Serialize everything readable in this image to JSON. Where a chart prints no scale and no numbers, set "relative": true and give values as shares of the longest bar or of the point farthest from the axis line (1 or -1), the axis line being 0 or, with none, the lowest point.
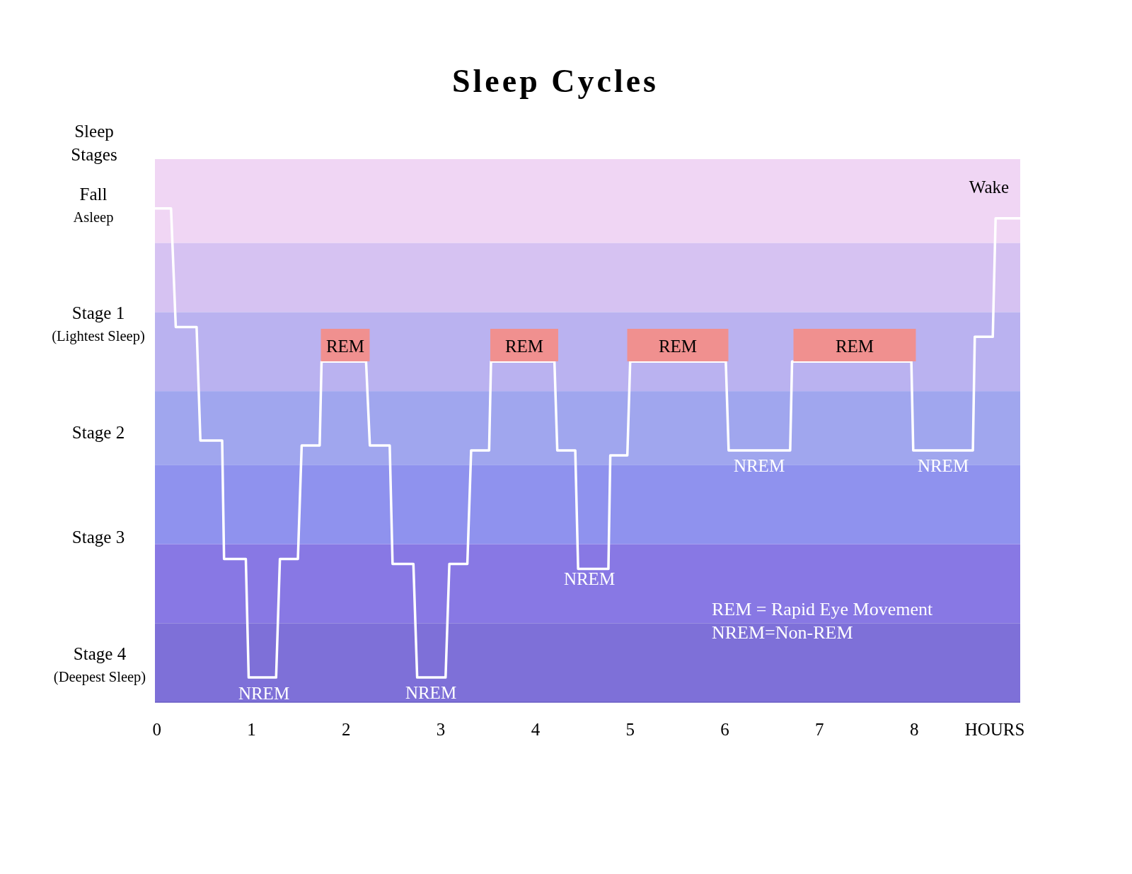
{
  "chart_data": {
    "type": "line",
    "title": "Sleep Cycles",
    "xlabel": "HOURS",
    "ylabel": "Sleep\nStages",
    "xlim": [
      -0.02,
      9.12
    ],
    "xticks": [
      0,
      1,
      2,
      3,
      4,
      5,
      6,
      7,
      8
    ],
    "relative": true,
    "marker": "none",
    "line_style": "solid",
    "bands": [
      {
        "axis": "y",
        "from": 0.93,
        "to": 1.1,
        "color": "#f0d6f4"
      },
      {
        "axis": "y",
        "from": 0.79,
        "to": 0.93,
        "color": "#d6c2f2"
      },
      {
        "axis": "y",
        "from": 0.63,
        "to": 0.79,
        "color": "#bab2f0"
      },
      {
        "axis": "y",
        "from": 0.48,
        "to": 0.63,
        "color": "#a0a6ee"
      },
      {
        "axis": "y",
        "from": 0.32,
        "to": 0.48,
        "color": "#8f92ee"
      },
      {
        "axis": "y",
        "from": 0.16,
        "to": 0.32,
        "color": "#8878e4"
      },
      {
        "axis": "y",
        "from": 0,
        "to": 0.16,
        "color": "#7e70d8"
      }
    ],
    "series": [
      {
        "color": "#ffffff",
        "x": [
          -0.02,
          0.15,
          0.2,
          0.42,
          0.46,
          0.69,
          0.71,
          0.94,
          0.97,
          1.26,
          1.3,
          1.49,
          1.53,
          1.72,
          1.74,
          2.21,
          2.25,
          2.46,
          2.49,
          2.71,
          2.75,
          3.05,
          3.09,
          3.28,
          3.32,
          3.51,
          3.53,
          4.2,
          4.23,
          4.42,
          4.45,
          4.77,
          4.79,
          4.97,
          5.0,
          6.01,
          6.04,
          6.69,
          6.71,
          7.97,
          7.99,
          8.62,
          8.64,
          8.83,
          8.86,
          9.12
        ],
        "values": [
          1,
          1,
          0.76,
          0.76,
          0.53,
          0.53,
          0.29,
          0.29,
          0.05,
          0.05,
          0.29,
          0.29,
          0.52,
          0.52,
          0.69,
          0.69,
          0.52,
          0.52,
          0.28,
          0.28,
          0.05,
          0.05,
          0.28,
          0.28,
          0.51,
          0.51,
          0.69,
          0.69,
          0.51,
          0.51,
          0.27,
          0.27,
          0.5,
          0.5,
          0.69,
          0.69,
          0.51,
          0.51,
          0.69,
          0.69,
          0.51,
          0.51,
          0.74,
          0.74,
          0.98,
          0.98
        ]
      }
    ],
    "annotations": [
      "Fall\nAsleep",
      "Stage 1\n(Lightest Sleep)",
      "Stage 2",
      "Stage 3",
      "Stage 4\n(Deepest Sleep)",
      "REM",
      "REM",
      "REM",
      "REM",
      "NREM",
      "NREM",
      "NREM",
      "NREM",
      "NREM",
      "Wake",
      "REM = Rapid Eye Movement",
      "NREM=Non-REM"
    ]
  }
}
